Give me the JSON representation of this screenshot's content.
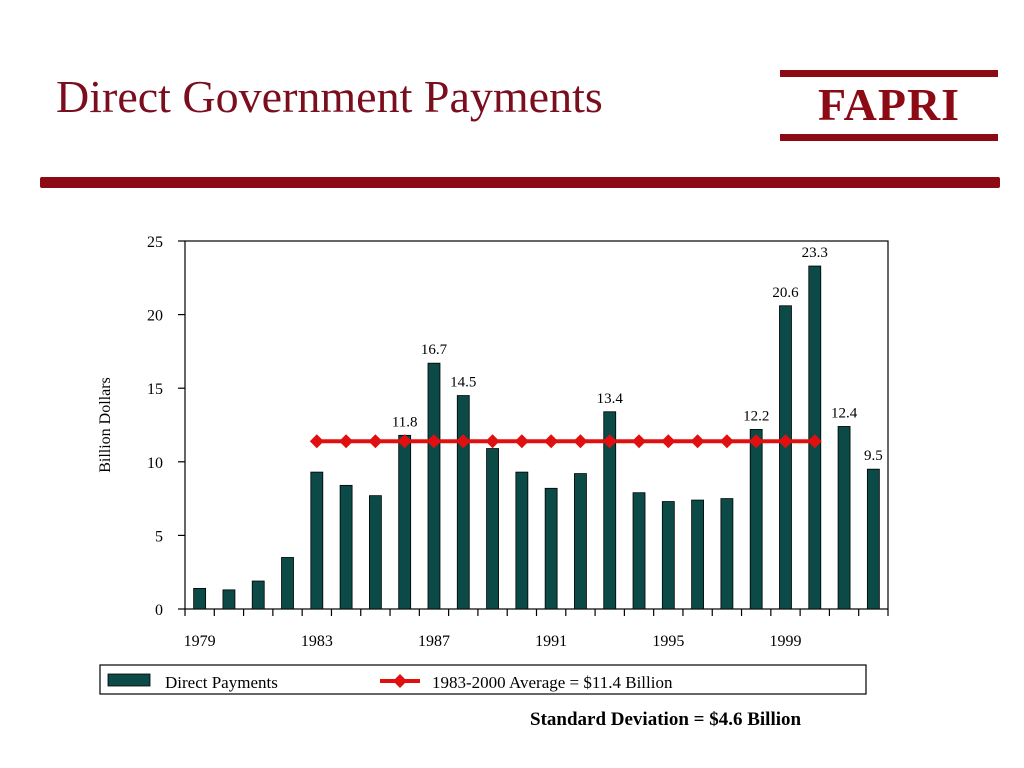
{
  "slide": {
    "title": "Direct Government Payments",
    "logo": "FAPRI",
    "footnote": "Standard Deviation = $4.6 Billion"
  },
  "colors": {
    "title": "#7a0e1e",
    "brand": "#8b0a14",
    "bar": "#0c4a48",
    "average_line": "#e01010"
  },
  "chart_data": {
    "type": "bar",
    "ylabel": "Billion Dollars",
    "ylim": [
      0,
      25
    ],
    "yticks": [
      0,
      5,
      10,
      15,
      20,
      25
    ],
    "x_tick_labels": [
      "1979",
      "1983",
      "1987",
      "1991",
      "1995",
      "1999"
    ],
    "categories": [
      "1979",
      "1980",
      "1981",
      "1982",
      "1983",
      "1984",
      "1985",
      "1986",
      "1987",
      "1988",
      "1989",
      "1990",
      "1991",
      "1992",
      "1993",
      "1994",
      "1995",
      "1996",
      "1997",
      "1998",
      "1999",
      "2000",
      "2001",
      "2002"
    ],
    "series": [
      {
        "name": "Direct Payments",
        "type": "bar",
        "values": [
          1.4,
          1.3,
          1.9,
          3.5,
          9.3,
          8.4,
          7.7,
          11.8,
          16.7,
          14.5,
          10.9,
          9.3,
          8.2,
          9.2,
          13.4,
          7.9,
          7.3,
          7.4,
          7.5,
          12.2,
          20.6,
          23.3,
          12.4,
          9.5
        ],
        "data_labels": [
          "",
          "",
          "",
          "",
          "",
          "",
          "",
          "11.8",
          "16.7",
          "14.5",
          "",
          "",
          "",
          "",
          "13.4",
          "",
          "",
          "",
          "",
          "12.2",
          "20.6",
          "23.3",
          "12.4",
          "9.5"
        ]
      },
      {
        "name": "1983-2000 Average = $11.4 Billion",
        "type": "line",
        "x_range": [
          "1983",
          "2000"
        ],
        "value": 11.4
      }
    ],
    "legend": [
      "Direct Payments",
      "1983-2000 Average = $11.4 Billion"
    ],
    "legend_position": "bottom",
    "grid": false
  }
}
